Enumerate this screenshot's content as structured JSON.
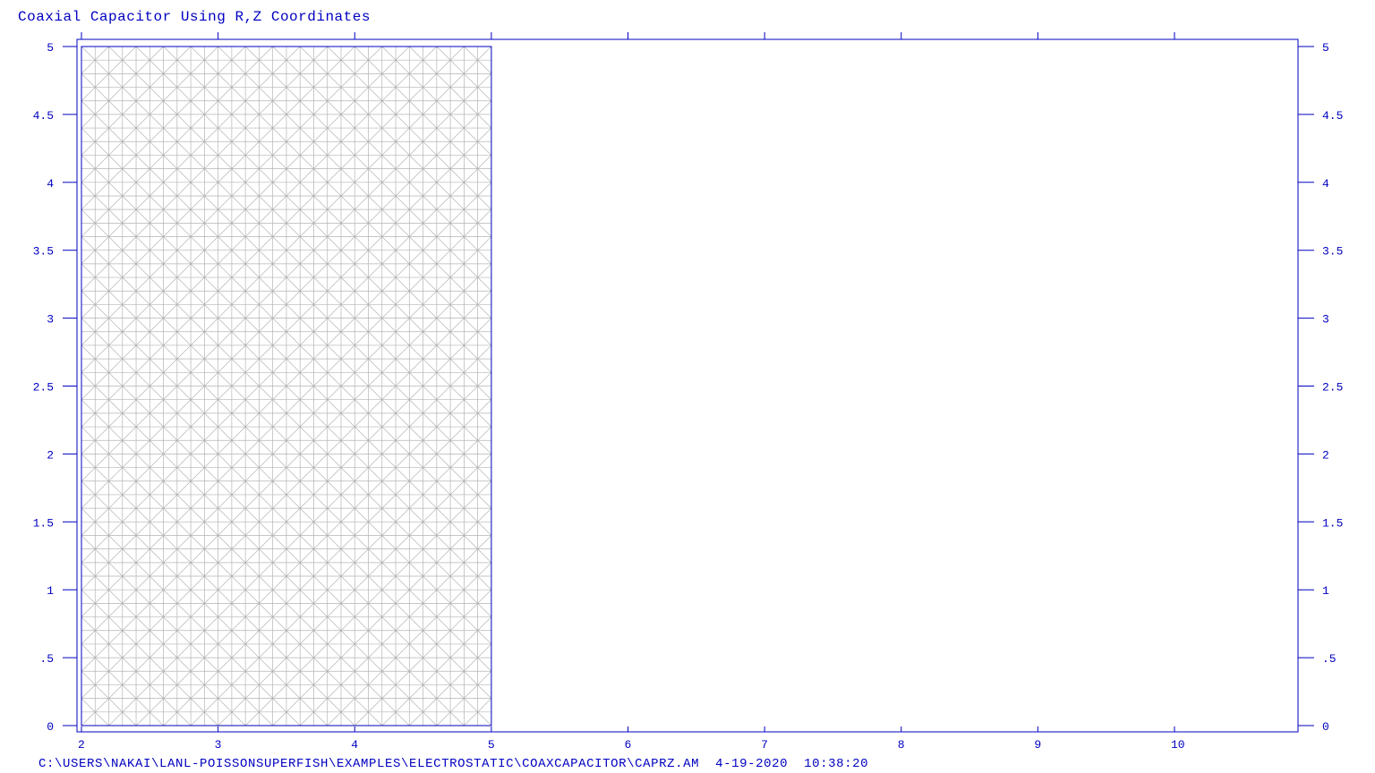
{
  "title": "Coaxial Capacitor Using R,Z Coordinates",
  "footer": {
    "path": "C:\\USERS\\NAKAI\\LANL-POISSONSUPERFISH\\EXAMPLES\\ELECTROSTATIC\\COAXCAPACITOR\\CAPRZ.AM",
    "date": "4-19-2020",
    "time": "10:38:20"
  },
  "colors": {
    "axis": "#0000c0",
    "mesh": "#b4b4b4",
    "background": "#ffffff"
  },
  "chart_data": {
    "type": "mesh",
    "title": "Coaxial Capacitor Using R,Z Coordinates",
    "xlim": [
      2,
      10.9
    ],
    "ylim": [
      0,
      5.05
    ],
    "x_ticks": [
      {
        "value": 2,
        "label": "2"
      },
      {
        "value": 3,
        "label": "3"
      },
      {
        "value": 4,
        "label": "4"
      },
      {
        "value": 5,
        "label": "5"
      },
      {
        "value": 6,
        "label": "6"
      },
      {
        "value": 7,
        "label": "7"
      },
      {
        "value": 8,
        "label": "8"
      },
      {
        "value": 9,
        "label": "9"
      },
      {
        "value": 10,
        "label": "10"
      }
    ],
    "y_ticks": [
      {
        "value": 0,
        "label": "0"
      },
      {
        "value": 0.5,
        "label": ".5"
      },
      {
        "value": 1,
        "label": "1"
      },
      {
        "value": 1.5,
        "label": "1.5"
      },
      {
        "value": 2,
        "label": "2"
      },
      {
        "value": 2.5,
        "label": "2.5"
      },
      {
        "value": 3,
        "label": "3"
      },
      {
        "value": 3.5,
        "label": "3.5"
      },
      {
        "value": 4,
        "label": "4"
      },
      {
        "value": 4.5,
        "label": "4.5"
      },
      {
        "value": 5,
        "label": "5"
      }
    ],
    "mesh_region": {
      "r_min": 2,
      "r_max": 5,
      "z_min": 0,
      "z_max": 5,
      "nr": 30,
      "nz": 50
    },
    "grid": false
  }
}
